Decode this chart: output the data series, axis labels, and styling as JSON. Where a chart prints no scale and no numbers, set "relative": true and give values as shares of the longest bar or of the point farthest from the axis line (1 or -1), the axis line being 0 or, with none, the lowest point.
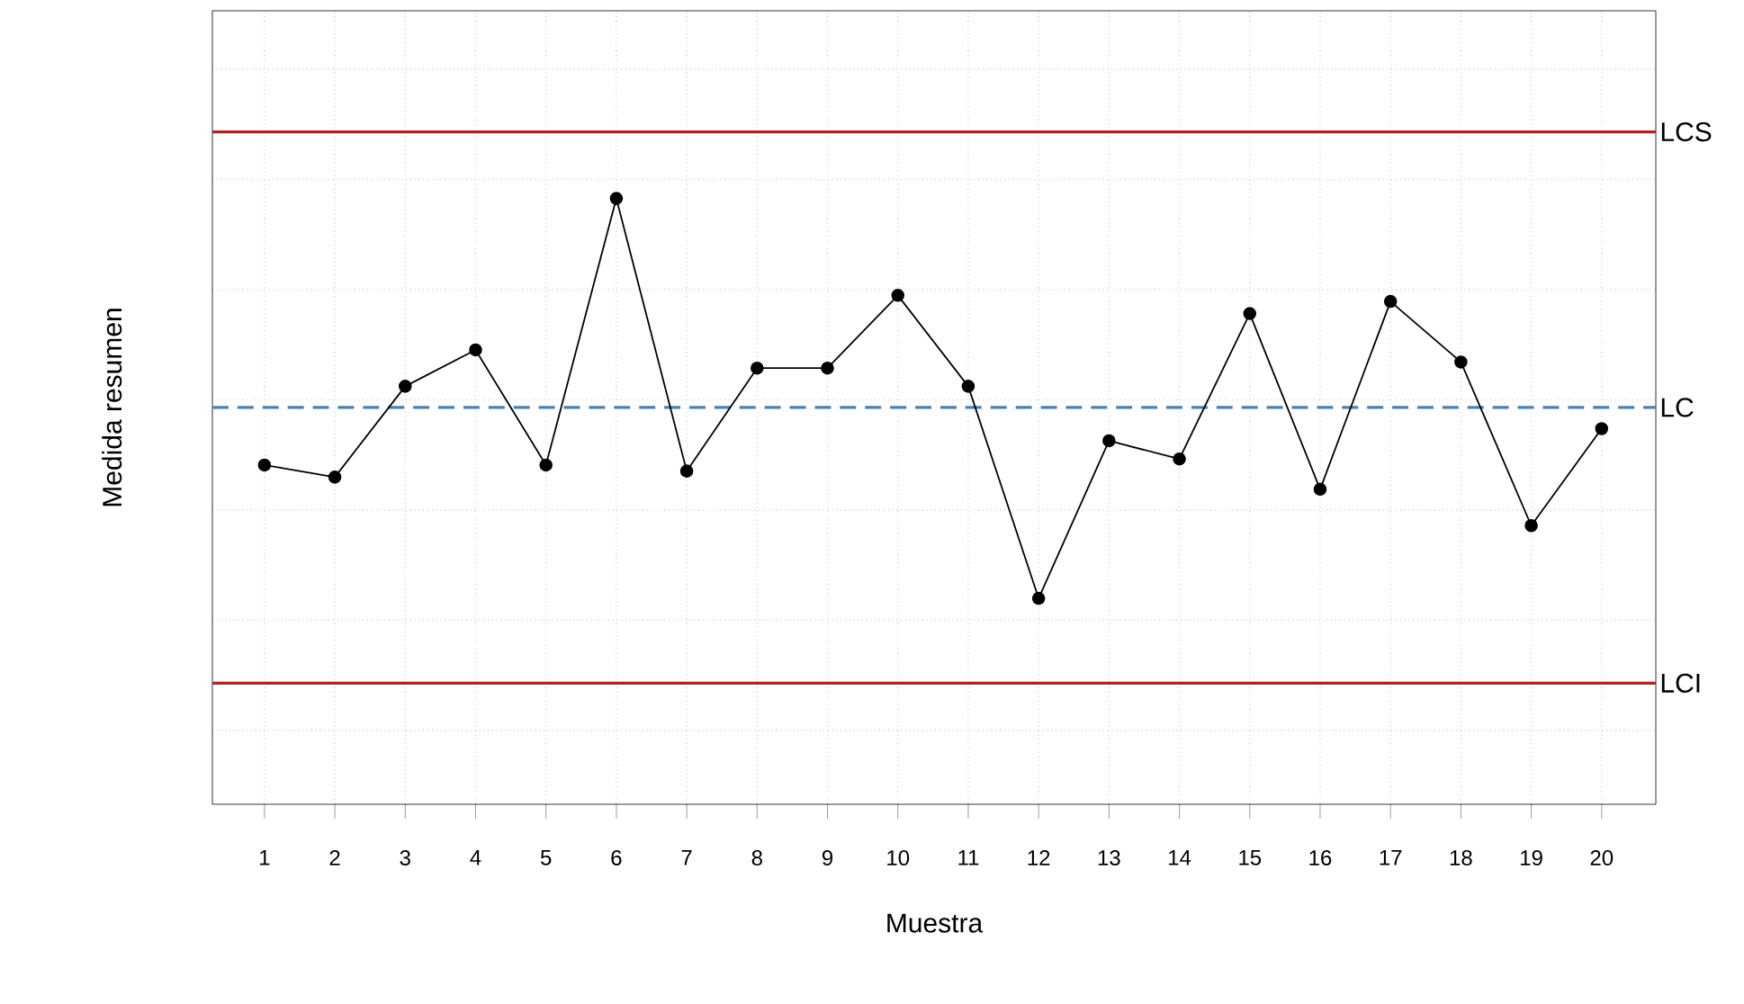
{
  "chart_data": {
    "type": "line",
    "xlabel": "Muestra",
    "ylabel": "Medida resumen",
    "categories": [
      "1",
      "2",
      "3",
      "4",
      "5",
      "6",
      "7",
      "8",
      "9",
      "10",
      "11",
      "12",
      "13",
      "14",
      "15",
      "16",
      "17",
      "18",
      "19",
      "20"
    ],
    "relative": true,
    "grid": true,
    "marker": "circle",
    "line_style": "solid",
    "series": [
      {
        "color": "#000000",
        "values": [
          0.56,
          0.54,
          0.69,
          0.75,
          0.56,
          1,
          0.55,
          0.72,
          0.72,
          0.84,
          0.69,
          0.34,
          0.6,
          0.57,
          0.81,
          0.52,
          0.83,
          0.73,
          0.46,
          0.62
        ]
      }
    ],
    "ref_lines": [
      {
        "axis": "y",
        "value": 1.11,
        "label": "LCS",
        "color": "#b22222",
        "line_style": "solid"
      },
      {
        "axis": "y",
        "value": 0.655,
        "label": "LC",
        "color": "#4682b4",
        "line_style": "dashed"
      },
      {
        "axis": "y",
        "value": 0.2,
        "label": "LCI",
        "color": "#b22222",
        "line_style": "solid"
      }
    ]
  }
}
